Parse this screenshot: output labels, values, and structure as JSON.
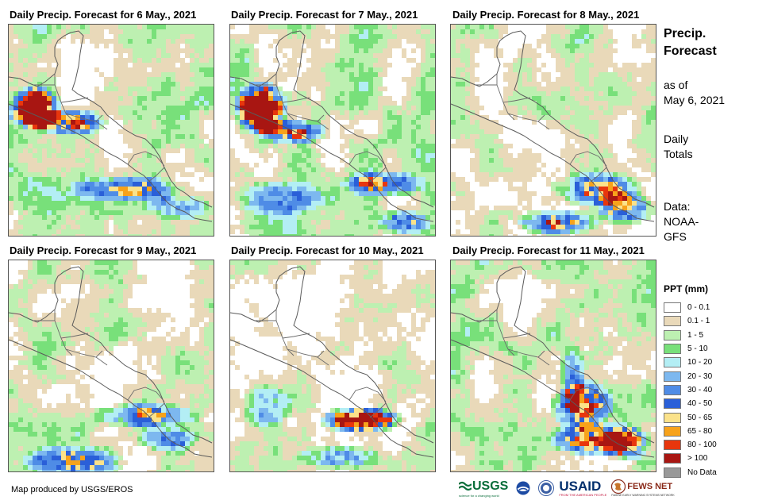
{
  "maps": [
    {
      "title": "Daily Precip. Forecast for 6 May., 2021",
      "pattern": "d6"
    },
    {
      "title": "Daily Precip. Forecast for 7 May., 2021",
      "pattern": "d7"
    },
    {
      "title": "Daily Precip. Forecast for 8 May., 2021",
      "pattern": "d8"
    },
    {
      "title": "Daily Precip. Forecast for 9 May., 2021",
      "pattern": "d9"
    },
    {
      "title": "Daily Precip. Forecast for 10 May., 2021",
      "pattern": "d10"
    },
    {
      "title": "Daily Precip. Forecast for 11 May., 2021",
      "pattern": "d11"
    }
  ],
  "sidebar": {
    "title_line1": "Precip.",
    "title_line2": "Forecast",
    "asof_line1": "as of",
    "asof_line2": "May 6, 2021",
    "totals_line1": "Daily",
    "totals_line2": "Totals",
    "data_line1": "Data:",
    "data_line2": "NOAA-",
    "data_line3": "GFS"
  },
  "legend": {
    "title": "PPT (mm)",
    "items": [
      {
        "label": "0 - 0.1",
        "color": "#ffffff"
      },
      {
        "label": "0.1 - 1",
        "color": "#e9d9b9"
      },
      {
        "label": "1 - 5",
        "color": "#bdf0b1"
      },
      {
        "label": "5 - 10",
        "color": "#78e07a"
      },
      {
        "label": "10 - 20",
        "color": "#b3eef4"
      },
      {
        "label": "20 - 30",
        "color": "#7db8ef"
      },
      {
        "label": "30 - 40",
        "color": "#4f8ce6"
      },
      {
        "label": "40 - 50",
        "color": "#2a5fd8"
      },
      {
        "label": "50 - 65",
        "color": "#fbe28a"
      },
      {
        "label": "65 - 80",
        "color": "#f7a21b"
      },
      {
        "label": "80 - 100",
        "color": "#e8360d"
      },
      {
        "label": "> 100",
        "color": "#a81612"
      },
      {
        "label": "No Data",
        "color": "#999999"
      }
    ]
  },
  "credit": "Map produced by USGS/EROS",
  "logos": {
    "usgs": "USGS",
    "usgs_tagline": "science for a changing world",
    "noaa": "NOAA",
    "usaid": "USAID",
    "usaid_tagline": "FROM THE AMERICAN PEOPLE",
    "fewsnet": "FEWS NET",
    "fewsnet_tagline": "FAMINE EARLY WARNING SYSTEMS NETWORK"
  }
}
